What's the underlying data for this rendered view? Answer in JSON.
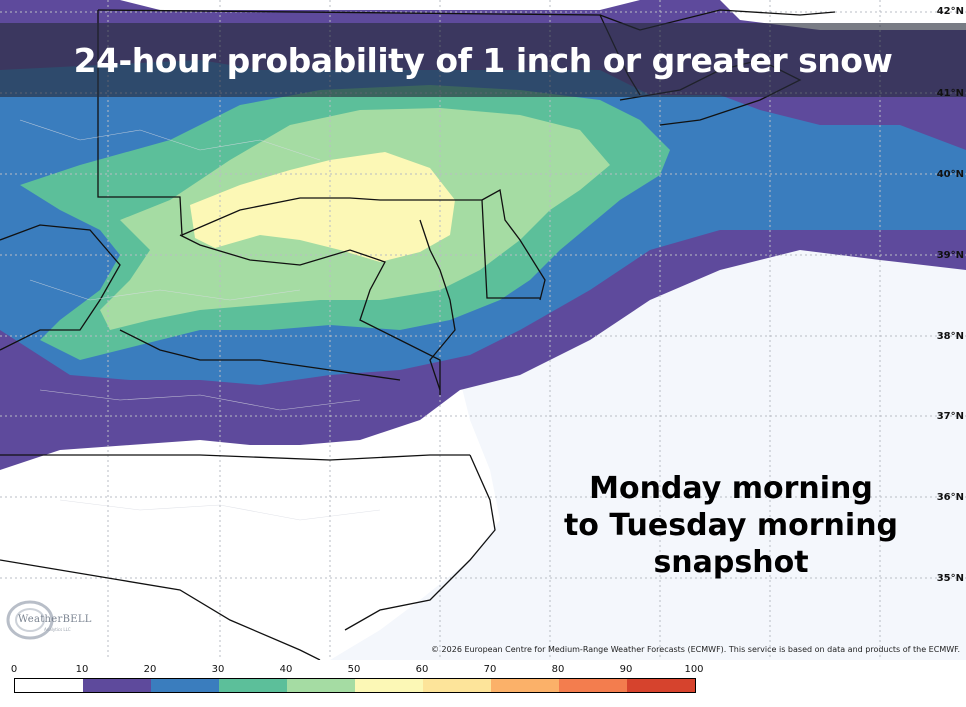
{
  "title": "24-hour probability of 1 inch or greater snow",
  "snapshot_lines": [
    "Monday morning",
    "to Tuesday morning",
    "snapshot"
  ],
  "lat_labels": [
    "42°N",
    "41°N",
    "40°N",
    "39°N",
    "38°N",
    "37°N",
    "36°N",
    "35°N"
  ],
  "copyright": "© 2026 European Centre for Medium-Range Weather Forecasts (ECMWF). This service is based on data and products of the ECMWF.",
  "logo": {
    "text": "WeatherBELL",
    "sub": "Analytics LLC"
  },
  "legend": {
    "ticks": [
      "0",
      "10",
      "20",
      "30",
      "40",
      "50",
      "60",
      "70",
      "80",
      "90",
      "100"
    ],
    "colors": [
      "#ffffff",
      "#5e4a9c",
      "#3a7dbe",
      "#5cbf9a",
      "#a5dca3",
      "#fcf8b6",
      "#fde49a",
      "#fbb169",
      "#f37d4e",
      "#d6432d",
      "#a8003c"
    ]
  },
  "palette": {
    "ocean": "#f4f7fc",
    "land_none": "#ffffff",
    "title_band": "#262c3a"
  }
}
